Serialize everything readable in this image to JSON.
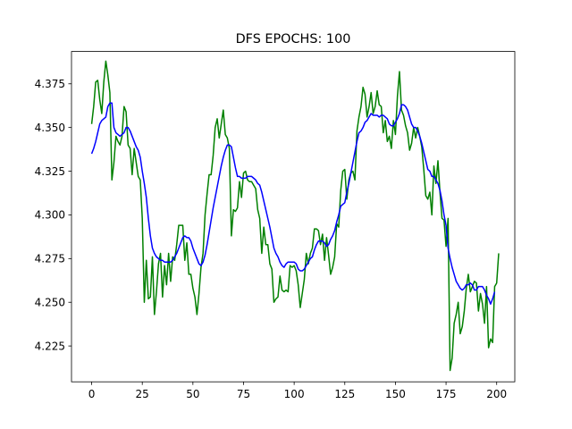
{
  "chart_data": {
    "type": "line",
    "title": "DFS EPOCHS: 100",
    "xlabel": "",
    "ylabel": "",
    "xlim": [
      -9.95,
      208.95
    ],
    "ylim": [
      4.2045,
      4.3935
    ],
    "xticks": [
      0,
      25,
      50,
      75,
      100,
      125,
      150,
      175,
      200
    ],
    "yticks": [
      4.225,
      4.25,
      4.275,
      4.3,
      4.325,
      4.35,
      4.375
    ],
    "ytick_labels": [
      "4.225",
      "4.250",
      "4.275",
      "4.300",
      "4.325",
      "4.350",
      "4.375"
    ],
    "grid": false,
    "legend": "none",
    "series": [
      {
        "color": "#008000",
        "x_start": 0,
        "x_step": 1,
        "values": [
          4.352,
          4.362,
          4.376,
          4.377,
          4.366,
          4.358,
          4.376,
          4.388,
          4.38,
          4.37,
          4.32,
          4.33,
          4.345,
          4.342,
          4.34,
          4.345,
          4.362,
          4.359,
          4.34,
          4.338,
          4.323,
          4.338,
          4.33,
          4.322,
          4.32,
          4.298,
          4.25,
          4.274,
          4.252,
          4.253,
          4.276,
          4.243,
          4.256,
          4.272,
          4.278,
          4.253,
          4.271,
          4.26,
          4.278,
          4.262,
          4.276,
          4.274,
          4.283,
          4.294,
          4.294,
          4.294,
          4.274,
          4.284,
          4.266,
          4.266,
          4.258,
          4.253,
          4.243,
          4.255,
          4.27,
          4.278,
          4.3,
          4.312,
          4.323,
          4.323,
          4.334,
          4.35,
          4.355,
          4.344,
          4.352,
          4.36,
          4.346,
          4.344,
          4.338,
          4.288,
          4.303,
          4.302,
          4.304,
          4.319,
          4.31,
          4.324,
          4.325,
          4.32,
          4.319,
          4.319,
          4.317,
          4.315,
          4.303,
          4.298,
          4.278,
          4.293,
          4.283,
          4.283,
          4.272,
          4.269,
          4.25,
          4.252,
          4.253,
          4.265,
          4.257,
          4.256,
          4.257,
          4.256,
          4.271,
          4.27,
          4.271,
          4.268,
          4.26,
          4.247,
          4.255,
          4.263,
          4.278,
          4.272,
          4.278,
          4.281,
          4.292,
          4.292,
          4.291,
          4.283,
          4.289,
          4.274,
          4.287,
          4.277,
          4.266,
          4.27,
          4.276,
          4.295,
          4.293,
          4.314,
          4.325,
          4.326,
          4.309,
          4.32,
          4.324,
          4.325,
          4.32,
          4.348,
          4.356,
          4.362,
          4.373,
          4.369,
          4.356,
          4.362,
          4.37,
          4.358,
          4.362,
          4.371,
          4.363,
          4.362,
          4.347,
          4.354,
          4.342,
          4.345,
          4.338,
          4.354,
          4.346,
          4.368,
          4.382,
          4.36,
          4.357,
          4.351,
          4.347,
          4.337,
          4.341,
          4.35,
          4.344,
          4.35,
          4.345,
          4.339,
          4.326,
          4.311,
          4.309,
          4.313,
          4.3,
          4.328,
          4.318,
          4.331,
          4.313,
          4.298,
          4.297,
          4.282,
          4.298,
          4.211,
          4.218,
          4.238,
          4.243,
          4.25,
          4.232,
          4.236,
          4.245,
          4.258,
          4.266,
          4.256,
          4.259,
          4.262,
          4.261,
          4.245,
          4.255,
          4.249,
          4.238,
          4.259,
          4.224,
          4.229,
          4.227,
          4.259,
          4.261,
          4.278
        ]
      },
      {
        "color": "#0000ff",
        "x_start": 0,
        "x_step": 1,
        "values": [
          4.335,
          4.338,
          4.342,
          4.347,
          4.352,
          4.354,
          4.355,
          4.356,
          4.362,
          4.364,
          4.364,
          4.35,
          4.347,
          4.346,
          4.345,
          4.346,
          4.347,
          4.35,
          4.35,
          4.348,
          4.345,
          4.342,
          4.339,
          4.337,
          4.333,
          4.325,
          4.318,
          4.31,
          4.298,
          4.288,
          4.281,
          4.278,
          4.276,
          4.275,
          4.274,
          4.274,
          4.273,
          4.273,
          4.273,
          4.273,
          4.274,
          4.276,
          4.278,
          4.281,
          4.284,
          4.287,
          4.288,
          4.287,
          4.287,
          4.285,
          4.281,
          4.278,
          4.275,
          4.272,
          4.271,
          4.273,
          4.277,
          4.283,
          4.29,
          4.297,
          4.304,
          4.31,
          4.316,
          4.322,
          4.328,
          4.333,
          4.337,
          4.34,
          4.34,
          4.339,
          4.333,
          4.327,
          4.322,
          4.322,
          4.321,
          4.321,
          4.321,
          4.322,
          4.322,
          4.322,
          4.321,
          4.32,
          4.318,
          4.317,
          4.313,
          4.308,
          4.303,
          4.298,
          4.293,
          4.287,
          4.281,
          4.278,
          4.276,
          4.273,
          4.271,
          4.27,
          4.272,
          4.273,
          4.273,
          4.273,
          4.273,
          4.272,
          4.269,
          4.268,
          4.268,
          4.269,
          4.271,
          4.273,
          4.275,
          4.276,
          4.28,
          4.283,
          4.285,
          4.285,
          4.285,
          4.284,
          4.282,
          4.283,
          4.286,
          4.288,
          4.291,
          4.296,
          4.3,
          4.305,
          4.306,
          4.307,
          4.313,
          4.318,
          4.324,
          4.33,
          4.336,
          4.342,
          4.347,
          4.348,
          4.35,
          4.353,
          4.354,
          4.356,
          4.358,
          4.357,
          4.357,
          4.357,
          4.356,
          4.357,
          4.357,
          4.356,
          4.355,
          4.352,
          4.351,
          4.351,
          4.353,
          4.355,
          4.358,
          4.363,
          4.363,
          4.362,
          4.36,
          4.356,
          4.352,
          4.35,
          4.35,
          4.348,
          4.345,
          4.341,
          4.336,
          4.331,
          4.326,
          4.325,
          4.322,
          4.322,
          4.32,
          4.318,
          4.314,
          4.308,
          4.3,
          4.294,
          4.281,
          4.275,
          4.27,
          4.266,
          4.262,
          4.26,
          4.258,
          4.257,
          4.258,
          4.26,
          4.26,
          4.261,
          4.26,
          4.257,
          4.257,
          4.259,
          4.259,
          4.259,
          4.257,
          4.254,
          4.252,
          4.249,
          4.252,
          4.256
        ]
      }
    ]
  }
}
